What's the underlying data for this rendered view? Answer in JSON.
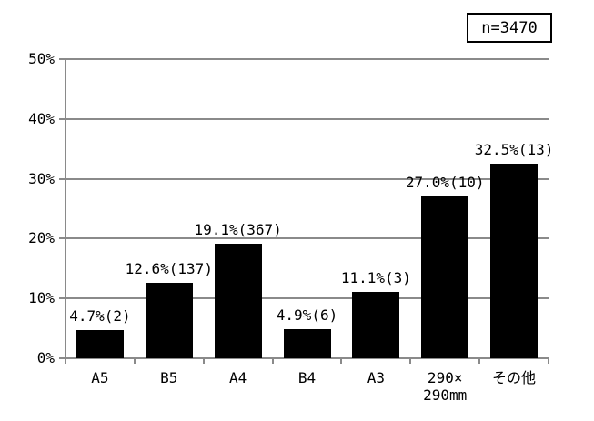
{
  "chart_data": {
    "type": "bar",
    "title": "",
    "n_label": "n=3470",
    "categories": [
      "A5",
      "B5",
      "A4",
      "B4",
      "A3",
      "290×290mm",
      "その他"
    ],
    "category_display_lines": [
      [
        "A5"
      ],
      [
        "B5"
      ],
      [
        "A4"
      ],
      [
        "B4"
      ],
      [
        "A3"
      ],
      [
        "290×",
        "290mm"
      ],
      [
        "その他"
      ]
    ],
    "values": [
      4.7,
      12.6,
      19.1,
      4.9,
      11.1,
      27.0,
      32.5
    ],
    "counts": [
      2,
      137,
      367,
      6,
      3,
      10,
      13
    ],
    "bar_labels": [
      "4.7%(2)",
      "12.6%(137)",
      "19.1%(367)",
      "4.9%(6)",
      "11.1%(3)",
      "27.0%(10)",
      "32.5%(13)"
    ],
    "xlabel": "",
    "ylabel": "",
    "ylim": [
      0,
      50
    ],
    "yticks": [
      0,
      10,
      20,
      30,
      40,
      50
    ],
    "ytick_labels": [
      "0%",
      "10%",
      "20%",
      "30%",
      "40%",
      "50%"
    ],
    "grid": true,
    "legend": "none",
    "colors": {
      "bar": "#000000",
      "grid": "#8a8a8a",
      "axis": "#8a8a8a",
      "text": "#000000",
      "background": "#ffffff"
    }
  }
}
